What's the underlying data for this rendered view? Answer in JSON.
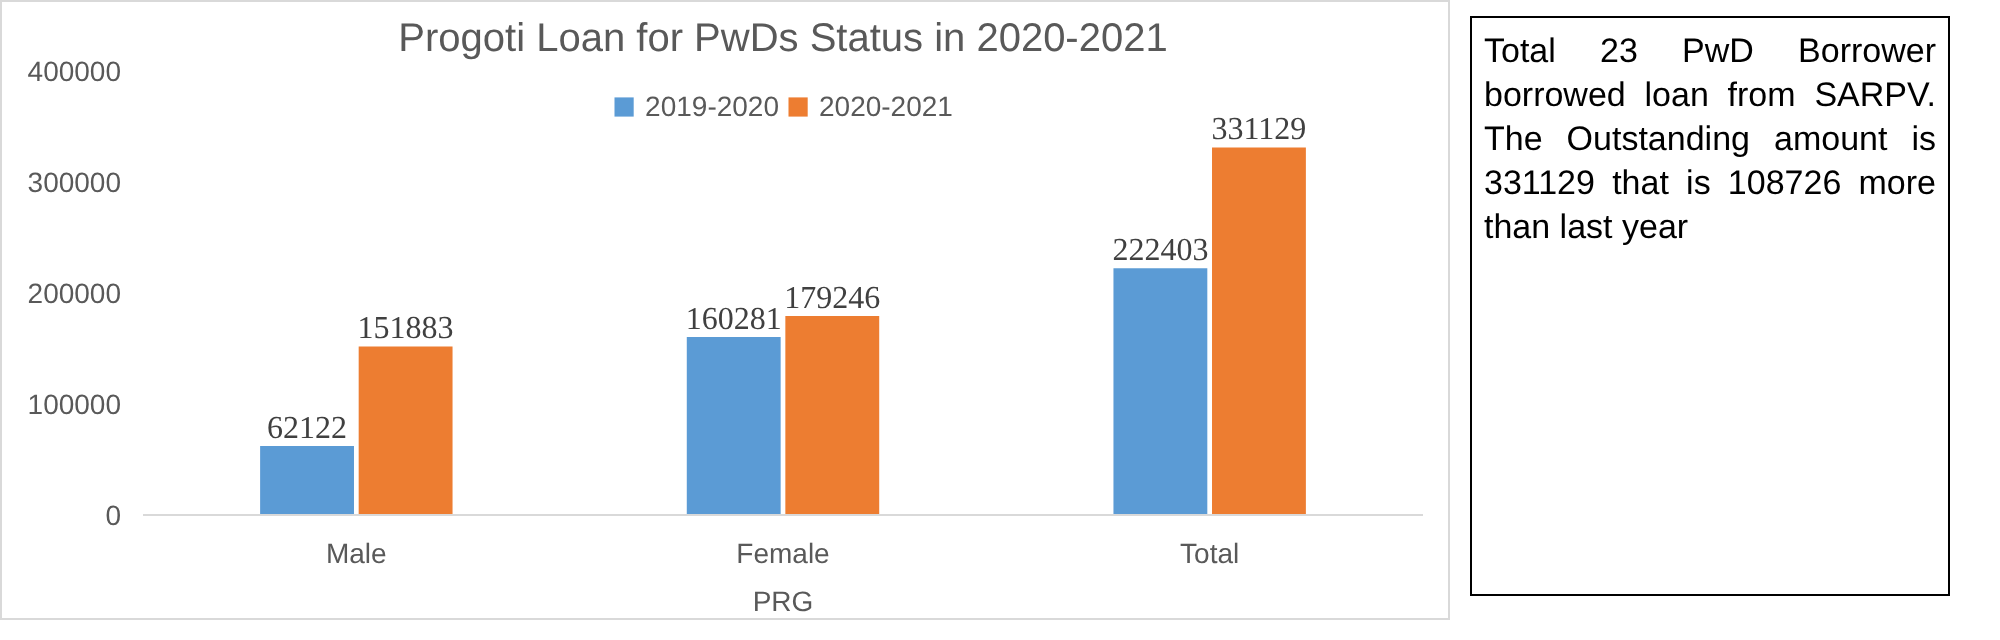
{
  "chart_data": [
    {
      "type": "bar",
      "title": "Progoti Loan for PwDs Status in 2020-2021",
      "xlabel": "PRG",
      "categories": [
        "Male",
        "Female",
        "Total"
      ],
      "series": [
        {
          "name": "2019-2020",
          "color": "#5b9bd5",
          "values": [
            62122,
            160281,
            222403
          ]
        },
        {
          "name": "2020-2021",
          "color": "#ed7d31",
          "values": [
            151883,
            179246,
            331129
          ]
        }
      ],
      "ylim": [
        0,
        400000
      ],
      "yticks": [
        0,
        100000,
        200000,
        300000,
        400000
      ],
      "grid": false,
      "legend": "top",
      "data_labels": true
    },
    {
      "type": "other",
      "annotations": [
        "Total 23 PwD Borrower borrowed loan from SARPV. The Outstanding amount is 331129 that is 108726 more than last year"
      ]
    }
  ]
}
